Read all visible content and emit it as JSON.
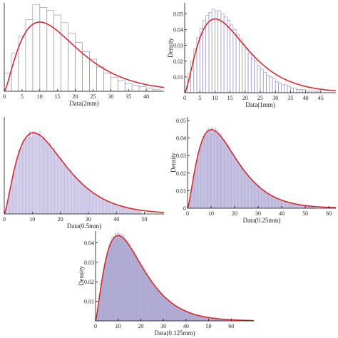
{
  "colors": {
    "bar_stroke": "#9b95c4",
    "bar_fill": "#d9d5ee",
    "curve": "#d2232a",
    "axis": "#111111"
  },
  "chart_data": [
    {
      "type": "bar",
      "xlabel": "Data(2mm)",
      "ylabel": "",
      "xlim": [
        0,
        45
      ],
      "ylim": [
        0,
        0.058
      ],
      "xticks": [
        "0",
        "5",
        "10",
        "15",
        "20",
        "25",
        "30",
        "35",
        "40"
      ],
      "yticks": [],
      "grid": false,
      "bin_width": 2,
      "values": [
        0.012,
        0.025,
        0.036,
        0.047,
        0.057,
        0.055,
        0.053,
        0.05,
        0.045,
        0.038,
        0.032,
        0.026,
        0.021,
        0.016,
        0.012,
        0.009,
        0.007,
        0.005,
        0.004,
        0.003,
        0.002,
        0.001
      ],
      "fit_curve": {
        "shape": 2.45,
        "scale": 6.9
      }
    },
    {
      "type": "bar",
      "xlabel": "Data(1mm)",
      "ylabel": "Density",
      "xlim": [
        0,
        50
      ],
      "ylim": [
        0,
        0.057
      ],
      "xticks": [
        "0",
        "5",
        "10",
        "15",
        "20",
        "25",
        "30",
        "35",
        "40",
        "45"
      ],
      "yticks": [
        "0.01",
        "0.02",
        "0.03",
        "0.04",
        "0.05"
      ],
      "grid": false,
      "bin_width": 1,
      "values": [
        0.004,
        0.012,
        0.02,
        0.028,
        0.035,
        0.041,
        0.046,
        0.049,
        0.051,
        0.053,
        0.052,
        0.052,
        0.05,
        0.048,
        0.046,
        0.043,
        0.04,
        0.037,
        0.034,
        0.031,
        0.028,
        0.025,
        0.022,
        0.02,
        0.017,
        0.015,
        0.013,
        0.011,
        0.01,
        0.009,
        0.007,
        0.006,
        0.005,
        0.005,
        0.004,
        0.003,
        0.003,
        0.002,
        0.002,
        0.002,
        0.001,
        0.001,
        0.001,
        0.001,
        0.001
      ],
      "fit_curve": {
        "shape": 2.55,
        "scale": 6.5
      }
    },
    {
      "type": "bar",
      "xlabel": "Data(0.5mm)",
      "ylabel": "",
      "xlim": [
        0,
        57
      ],
      "ylim": [
        0,
        0.052
      ],
      "xticks": [
        "0",
        "10",
        "20",
        "30",
        "40",
        "50"
      ],
      "yticks": [],
      "grid": false,
      "bin_width": 0.5,
      "values": [],
      "fit_curve": {
        "shape": 2.45,
        "scale": 7.2
      }
    },
    {
      "type": "bar",
      "xlabel": "Data(0.25mm)",
      "ylabel": "Density",
      "xlim": [
        0,
        63
      ],
      "ylim": [
        0,
        0.052
      ],
      "xticks": [
        "0",
        "10",
        "20",
        "30",
        "40",
        "50",
        "60"
      ],
      "yticks": [
        "0",
        "0.01",
        "0.02",
        "0.03",
        "0.04",
        "0.05"
      ],
      "grid": false,
      "bin_width": 0.25,
      "values": [],
      "fit_curve": {
        "shape": 2.45,
        "scale": 7.0
      }
    },
    {
      "type": "bar",
      "xlabel": "Data(0.125mm)",
      "ylabel": "Density",
      "xlim": [
        0,
        70
      ],
      "ylim": [
        0,
        0.046
      ],
      "xticks": [
        "0",
        "10",
        "20",
        "30",
        "40",
        "50",
        "60"
      ],
      "yticks": [
        "0.01",
        "0.02",
        "0.03",
        "0.04"
      ],
      "grid": false,
      "bin_width": 0.125,
      "values": [],
      "fit_curve": {
        "shape": 2.35,
        "scale": 7.4
      }
    }
  ]
}
